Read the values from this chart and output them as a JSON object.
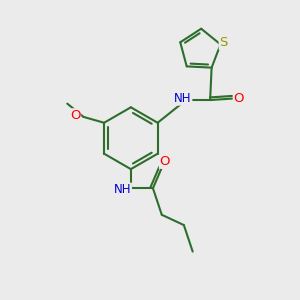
{
  "background_color": "#ebebeb",
  "bond_color": "#2d6e2d",
  "atom_colors": {
    "S": "#999900",
    "O": "#ff0000",
    "N": "#0000cc",
    "C": "#2d6e2d"
  },
  "figsize": [
    3.0,
    3.0
  ],
  "dpi": 100,
  "line_width": 1.5,
  "font_size": 8.5
}
